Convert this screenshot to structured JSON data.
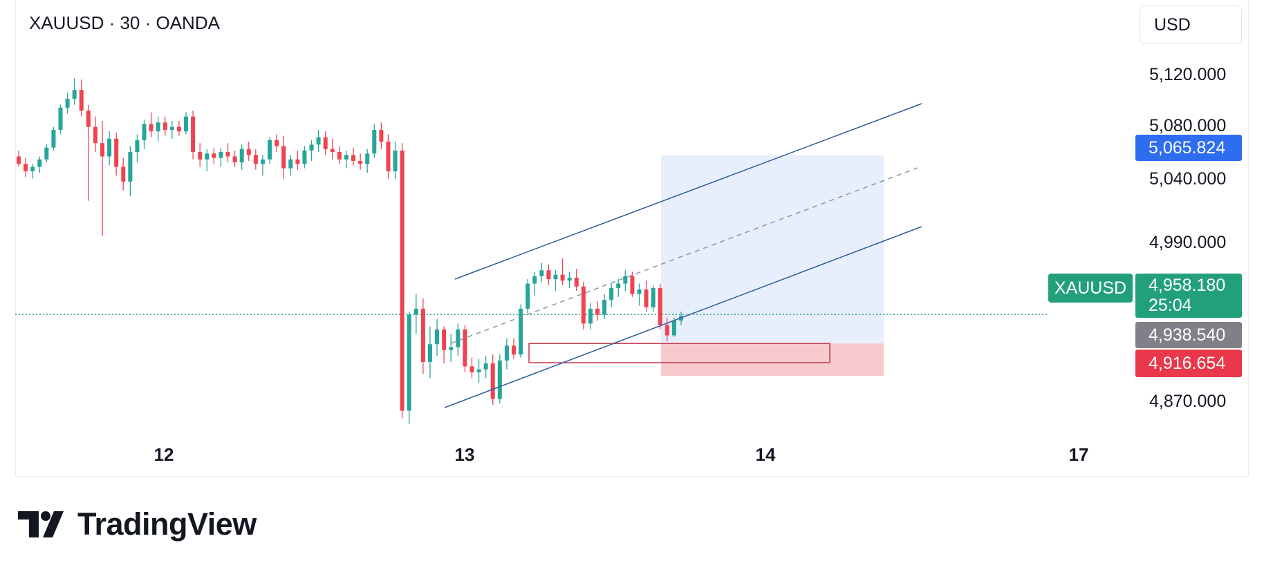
{
  "header": {
    "symbol_title": "XAUUSD · 30 · OANDA",
    "currency_button": "USD"
  },
  "brand": {
    "name": "TradingView"
  },
  "colors": {
    "up": "#26a69a",
    "down": "#ef4350",
    "channel": "#2e5a9a",
    "target_zone": "#e3ecfb",
    "stop_zone": "#f7c4c8",
    "current_price": "#22a07a",
    "target_price": "#2f6df0",
    "entry_price": "#7f8088",
    "stop_price": "#e9384a"
  },
  "chart_data": {
    "type": "candlestick",
    "symbol": "XAUUSD",
    "interval": "30",
    "source": "OANDA",
    "x_ticks": [
      "12",
      "13",
      "14",
      "17"
    ],
    "y_ticks": [
      "5,120.000",
      "5,080.000",
      "5,040.000",
      "4,990.000",
      "4,870.000"
    ],
    "ylim": [
      4855,
      5140
    ],
    "price_labels": {
      "current": {
        "symbol": "XAUUSD",
        "price": "4,958.180",
        "countdown": "25:04"
      },
      "target": "5,065.824",
      "entry": "4,938.540",
      "stop": "4,916.654"
    },
    "position": {
      "type": "long",
      "entry": 4938.54,
      "target": 5065.824,
      "stop": 4916.654
    },
    "demand_zone": {
      "top": 4938.5,
      "bottom": 4925.5
    },
    "channel": {
      "upper": [
        [
          4958,
          5117
        ]
      ],
      "note": "ascending parallel channel with dashed median"
    },
    "candles": [
      [
        5065,
        5069,
        5058,
        5060
      ],
      [
        5060,
        5064,
        5051,
        5055
      ],
      [
        5055,
        5060,
        5050,
        5058
      ],
      [
        5058,
        5065,
        5054,
        5063
      ],
      [
        5063,
        5073,
        5061,
        5071
      ],
      [
        5071,
        5085,
        5069,
        5083
      ],
      [
        5083,
        5100,
        5080,
        5098
      ],
      [
        5098,
        5108,
        5094,
        5104
      ],
      [
        5104,
        5118,
        5100,
        5110
      ],
      [
        5110,
        5117,
        5092,
        5096
      ],
      [
        5096,
        5100,
        5035,
        5085
      ],
      [
        5085,
        5092,
        5068,
        5074
      ],
      [
        5074,
        5089,
        5011,
        5065
      ],
      [
        5065,
        5082,
        5059,
        5077
      ],
      [
        5077,
        5081,
        5052,
        5058
      ],
      [
        5058,
        5064,
        5042,
        5048
      ],
      [
        5048,
        5072,
        5038,
        5068
      ],
      [
        5068,
        5080,
        5061,
        5076
      ],
      [
        5076,
        5090,
        5070,
        5087
      ],
      [
        5087,
        5095,
        5078,
        5082
      ],
      [
        5082,
        5092,
        5075,
        5088
      ],
      [
        5088,
        5092,
        5079,
        5083
      ],
      [
        5083,
        5089,
        5077,
        5085
      ],
      [
        5085,
        5089,
        5079,
        5082
      ],
      [
        5082,
        5095,
        5080,
        5092
      ],
      [
        5092,
        5096,
        5063,
        5068
      ],
      [
        5068,
        5074,
        5058,
        5063
      ],
      [
        5063,
        5070,
        5055,
        5067
      ],
      [
        5067,
        5071,
        5060,
        5064
      ],
      [
        5064,
        5071,
        5058,
        5068
      ],
      [
        5068,
        5074,
        5061,
        5065
      ],
      [
        5065,
        5069,
        5058,
        5061
      ],
      [
        5061,
        5073,
        5056,
        5070
      ],
      [
        5070,
        5075,
        5062,
        5066
      ],
      [
        5066,
        5070,
        5056,
        5060
      ],
      [
        5060,
        5066,
        5052,
        5063
      ],
      [
        5063,
        5078,
        5060,
        5076
      ],
      [
        5076,
        5080,
        5068,
        5072
      ],
      [
        5072,
        5079,
        5050,
        5057
      ],
      [
        5057,
        5066,
        5052,
        5063
      ],
      [
        5063,
        5069,
        5056,
        5060
      ],
      [
        5060,
        5072,
        5057,
        5069
      ],
      [
        5069,
        5076,
        5062,
        5073
      ],
      [
        5073,
        5083,
        5068,
        5078
      ],
      [
        5078,
        5082,
        5066,
        5070
      ],
      [
        5070,
        5077,
        5063,
        5068
      ],
      [
        5068,
        5072,
        5060,
        5063
      ],
      [
        5063,
        5069,
        5057,
        5066
      ],
      [
        5066,
        5071,
        5059,
        5062
      ],
      [
        5062,
        5067,
        5056,
        5060
      ],
      [
        5060,
        5070,
        5054,
        5067
      ],
      [
        5067,
        5087,
        5064,
        5083
      ],
      [
        5083,
        5088,
        5070,
        5075
      ],
      [
        5075,
        5080,
        5050,
        5055
      ],
      [
        5055,
        5075,
        5050,
        5069
      ],
      [
        5069,
        5074,
        4888,
        4893
      ],
      [
        4893,
        4960,
        4884,
        4958
      ],
      [
        4958,
        4972,
        4945,
        4962
      ],
      [
        4962,
        4969,
        4918,
        4926
      ],
      [
        4926,
        4950,
        4915,
        4938
      ],
      [
        4938,
        4955,
        4930,
        4948
      ],
      [
        4948,
        4950,
        4925,
        4934
      ],
      [
        4934,
        4945,
        4926,
        4936
      ],
      [
        4936,
        4952,
        4930,
        4948
      ],
      [
        4948,
        4951,
        4919,
        4923
      ],
      [
        4923,
        4929,
        4915,
        4919
      ],
      [
        4919,
        4928,
        4912,
        4921
      ],
      [
        4921,
        4930,
        4915,
        4925
      ],
      [
        4925,
        4931,
        4897,
        4901
      ],
      [
        4901,
        4931,
        4898,
        4927
      ],
      [
        4927,
        4942,
        4921,
        4937
      ],
      [
        4937,
        4942,
        4928,
        4931
      ],
      [
        4931,
        4965,
        4929,
        4962
      ],
      [
        4962,
        4982,
        4959,
        4979
      ],
      [
        4979,
        4987,
        4971,
        4984
      ],
      [
        4984,
        4993,
        4980,
        4988
      ],
      [
        4988,
        4992,
        4978,
        4982
      ],
      [
        4982,
        4988,
        4974,
        4985
      ],
      [
        4985,
        4996,
        4978,
        4981
      ],
      [
        4981,
        4987,
        4976,
        4983
      ],
      [
        4983,
        4989,
        4974,
        4977
      ],
      [
        4977,
        4980,
        4948,
        4952
      ],
      [
        4952,
        4966,
        4948,
        4962
      ],
      [
        4962,
        4967,
        4954,
        4958
      ],
      [
        4958,
        4972,
        4955,
        4968
      ],
      [
        4968,
        4979,
        4963,
        4976
      ],
      [
        4976,
        4982,
        4970,
        4979
      ],
      [
        4979,
        4988,
        4974,
        4984
      ],
      [
        4984,
        4987,
        4970,
        4972
      ],
      [
        4972,
        4979,
        4964,
        4975
      ],
      [
        4975,
        4981,
        4960,
        4963
      ],
      [
        4963,
        4978,
        4960,
        4976
      ],
      [
        4976,
        4979,
        4948,
        4951
      ],
      [
        4951,
        4956,
        4940,
        4944
      ],
      [
        4944,
        4956,
        4943,
        4954
      ],
      [
        4954,
        4960,
        4951,
        4957
      ]
    ]
  }
}
